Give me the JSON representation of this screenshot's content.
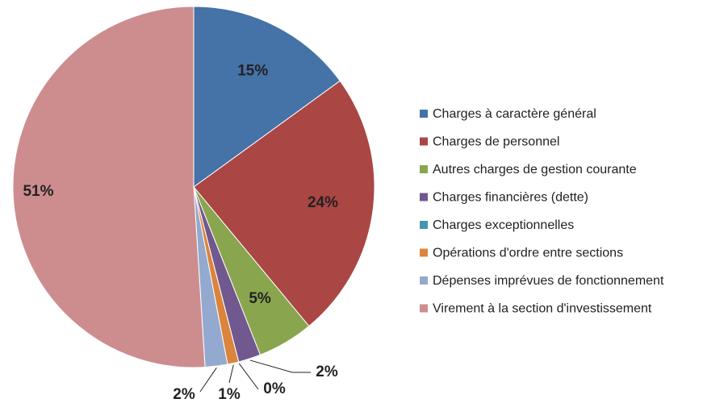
{
  "chart_data": {
    "type": "pie",
    "categories": [
      "Charges à caractère général",
      "Charges de personnel",
      "Autres charges de gestion courante",
      "Charges financières (dette)",
      "Charges exceptionnelles",
      "Opérations d'ordre entre sections",
      "Dépenses imprévues de fonctionnement",
      "Virement à la section d'investissement"
    ],
    "values": [
      15,
      24,
      5,
      2,
      0,
      1,
      2,
      51
    ],
    "value_labels": [
      "15%",
      "24%",
      "5%",
      "2%",
      "0%",
      "1%",
      "2%",
      "51%"
    ],
    "colors": [
      "#4572a7",
      "#aa4643",
      "#89a54e",
      "#71588f",
      "#4198af",
      "#db843d",
      "#93a9cf",
      "#cd8d8e"
    ],
    "legend": "right"
  }
}
